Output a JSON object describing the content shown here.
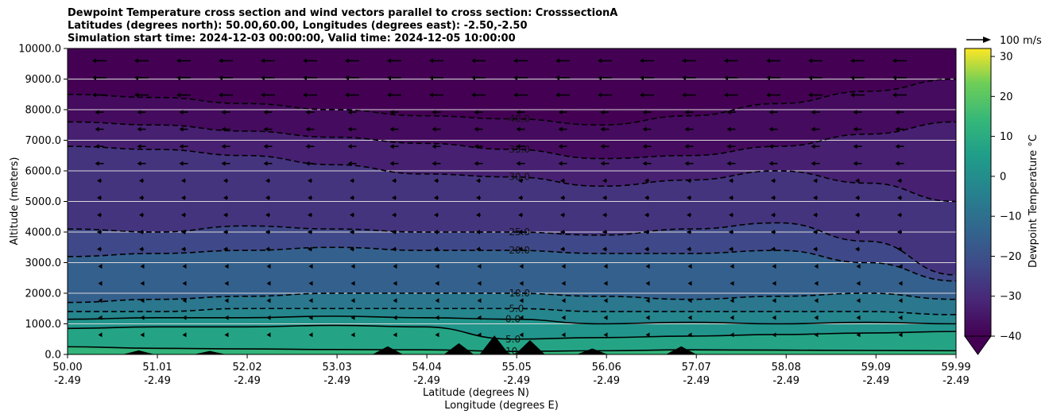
{
  "title_lines": [
    "Dewpoint Temperature cross section and wind vectors parallel to cross section: CrosssectionA",
    "Latitudes (degrees north): 50.00,60.00, Longitudes (degrees east): -2.50,-2.50",
    "Simulation start time: 2024-12-03 00:00:00, Valid time: 2024-12-05 10:00:00"
  ],
  "chart_data": {
    "type": "heatmap",
    "ylabel": "Altitude (meters)",
    "xlabel_lines": [
      "Latitude (degrees N)",
      "Longitude (degrees E)"
    ],
    "ylim": [
      0,
      10000
    ],
    "yticks": [
      "0.0",
      "1000.0",
      "2000.0",
      "3000.0",
      "4000.0",
      "5000.0",
      "6000.0",
      "7000.0",
      "8000.0",
      "9000.0",
      "10000.0"
    ],
    "xlim": [
      50.0,
      59.99
    ],
    "xticks": [
      {
        "lat": "50.00",
        "lon": "-2.49"
      },
      {
        "lat": "51.01",
        "lon": "-2.49"
      },
      {
        "lat": "52.02",
        "lon": "-2.49"
      },
      {
        "lat": "53.03",
        "lon": "-2.49"
      },
      {
        "lat": "54.04",
        "lon": "-2.49"
      },
      {
        "lat": "55.05",
        "lon": "-2.49"
      },
      {
        "lat": "56.06",
        "lon": "-2.49"
      },
      {
        "lat": "57.07",
        "lon": "-2.49"
      },
      {
        "lat": "58.08",
        "lon": "-2.49"
      },
      {
        "lat": "59.09",
        "lon": "-2.49"
      },
      {
        "lat": "59.99",
        "lon": "-2.49"
      }
    ],
    "grid": "horizontal",
    "colorbar": {
      "label": "Dewpoint Temperature $^\\circ$C",
      "label_display": "Dewpoint Temperature °C",
      "min": -40,
      "max": 32,
      "ticks": [
        "30",
        "20",
        "10",
        "0",
        "−10",
        "−20",
        "−30",
        "−40"
      ],
      "tick_values": [
        30,
        20,
        10,
        0,
        -10,
        -20,
        -30,
        -40
      ],
      "extend": "min",
      "colormap": "viridis"
    },
    "wind_key": {
      "label": "100 m/s"
    },
    "contour_levels": [
      {
        "value": -40,
        "label": "-40.0",
        "heights": [
          8500,
          8400,
          8200,
          8000,
          7800,
          7700,
          7500,
          7800,
          8200,
          8600,
          9000
        ]
      },
      {
        "value": -35,
        "label": "-35.0",
        "heights": [
          7600,
          7500,
          7300,
          7100,
          6900,
          6700,
          6400,
          6500,
          6800,
          7200,
          7600
        ]
      },
      {
        "value": -30,
        "label": "-30.0",
        "heights": [
          6800,
          6700,
          6500,
          6200,
          5900,
          5800,
          5500,
          5700,
          6000,
          5600,
          5000
        ]
      },
      {
        "value": -25,
        "label": "-25.0",
        "heights": [
          4100,
          4000,
          4200,
          4100,
          4000,
          4000,
          3900,
          4100,
          4300,
          3700,
          2600
        ]
      },
      {
        "value": -20,
        "label": "-20.0",
        "heights": [
          3200,
          3300,
          3400,
          3500,
          3400,
          3400,
          3300,
          3300,
          3400,
          3000,
          2400
        ]
      },
      {
        "value": -10,
        "label": "-10.0",
        "heights": [
          1700,
          1800,
          1900,
          2000,
          2000,
          2000,
          1900,
          1800,
          1900,
          2000,
          1800
        ]
      },
      {
        "value": -5,
        "label": "-5.0",
        "heights": [
          1400,
          1400,
          1500,
          1500,
          1500,
          1500,
          1400,
          1400,
          1400,
          1400,
          1300
        ]
      },
      {
        "value": 0,
        "label": "0.0",
        "heights": [
          1150,
          1200,
          1200,
          1250,
          1200,
          1150,
          1000,
          1050,
          1000,
          1050,
          1000
        ]
      },
      {
        "value": 5,
        "label": "5.0",
        "heights": [
          850,
          900,
          900,
          950,
          900,
          500,
          550,
          600,
          650,
          700,
          750
        ]
      },
      {
        "value": 10,
        "label": "10.0",
        "heights": [
          250,
          200,
          180,
          160,
          150,
          100,
          120,
          150,
          140,
          130,
          120
        ]
      }
    ],
    "terrain_peaks": [
      {
        "lat": 50.8,
        "height": 120
      },
      {
        "lat": 51.6,
        "height": 100
      },
      {
        "lat": 53.6,
        "height": 250
      },
      {
        "lat": 54.4,
        "height": 350
      },
      {
        "lat": 54.8,
        "height": 600
      },
      {
        "lat": 55.2,
        "height": 450
      },
      {
        "lat": 55.9,
        "height": 180
      },
      {
        "lat": 56.9,
        "height": 250
      }
    ]
  }
}
